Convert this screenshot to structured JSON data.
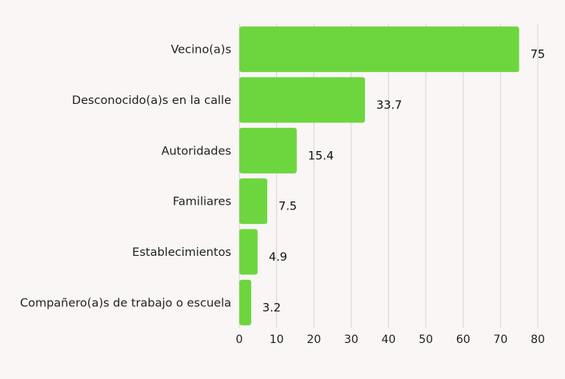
{
  "chart_data": {
    "type": "bar",
    "orientation": "horizontal",
    "categories": [
      "Vecino(a)s",
      "Desconocido(a)s en la calle",
      "Autoridades",
      "Familiares",
      "Establecimientos",
      "Compañero(a)s de trabajo o escuela"
    ],
    "values": [
      75,
      33.7,
      15.4,
      7.5,
      4.9,
      3.2
    ],
    "value_labels": [
      "75",
      "33.7",
      "15.4",
      "7.5",
      "4.9",
      "3.2"
    ],
    "x_ticks": [
      "0",
      "10",
      "20",
      "30",
      "40",
      "50",
      "60",
      "70",
      "80"
    ],
    "xlim": [
      0,
      80
    ],
    "grid": "vertical",
    "legend": "none",
    "bar_color": "#6dd63f",
    "title": "",
    "xlabel": "",
    "ylabel": ""
  }
}
